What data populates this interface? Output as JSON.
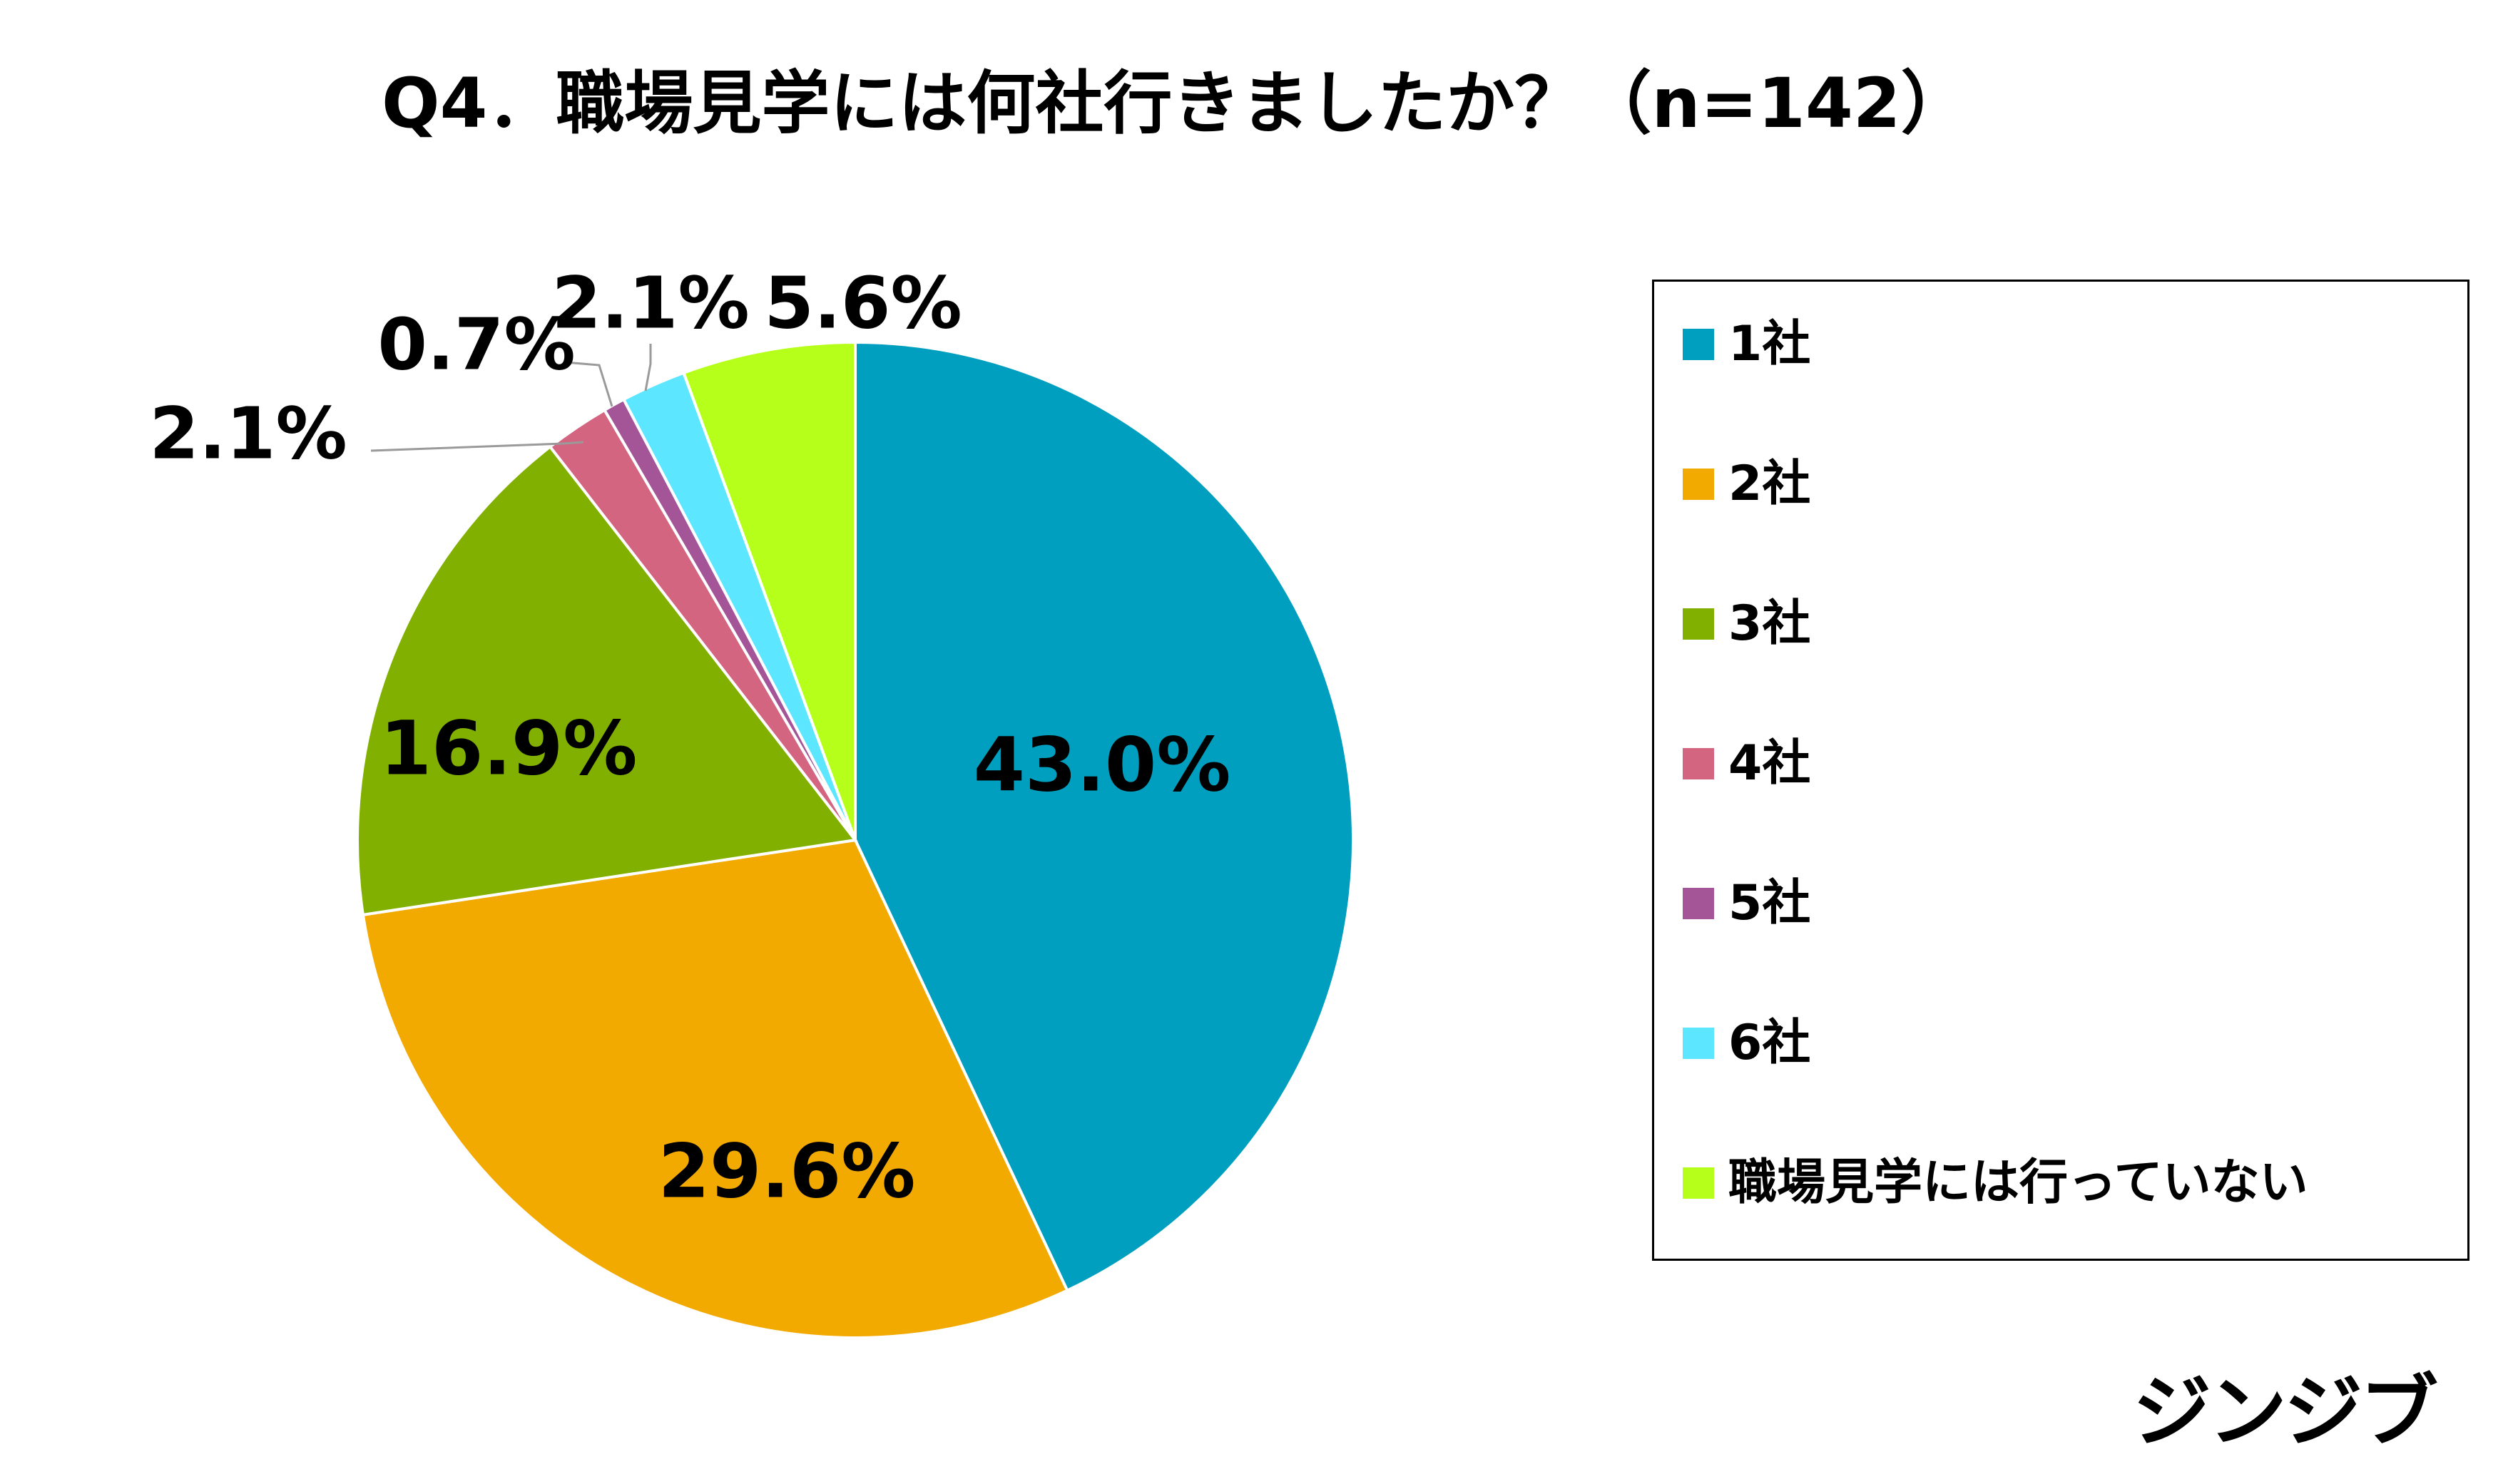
{
  "chart_data": {
    "type": "pie",
    "title": "Q4．職場見学には何社行きましたか？（n=142）",
    "categories": [
      "1社",
      "2社",
      "3社",
      "4社",
      "5社",
      "6社",
      "職場見学には行っていない"
    ],
    "values": [
      43.0,
      29.6,
      16.9,
      2.1,
      0.7,
      2.1,
      5.6
    ],
    "data_labels": [
      "43.0%",
      "29.6%",
      "16.9%",
      "2.1%",
      "0.7%",
      "2.1%",
      "5.6%"
    ],
    "colors": [
      "#009FBF",
      "#F2A900",
      "#82B000",
      "#D36580",
      "#A35598",
      "#5CE6FF",
      "#B5FF1A"
    ],
    "legend_position": "right",
    "start_angle": "12 o'clock, clockwise"
  },
  "branding": {
    "logo_text": "ジンジブ"
  }
}
